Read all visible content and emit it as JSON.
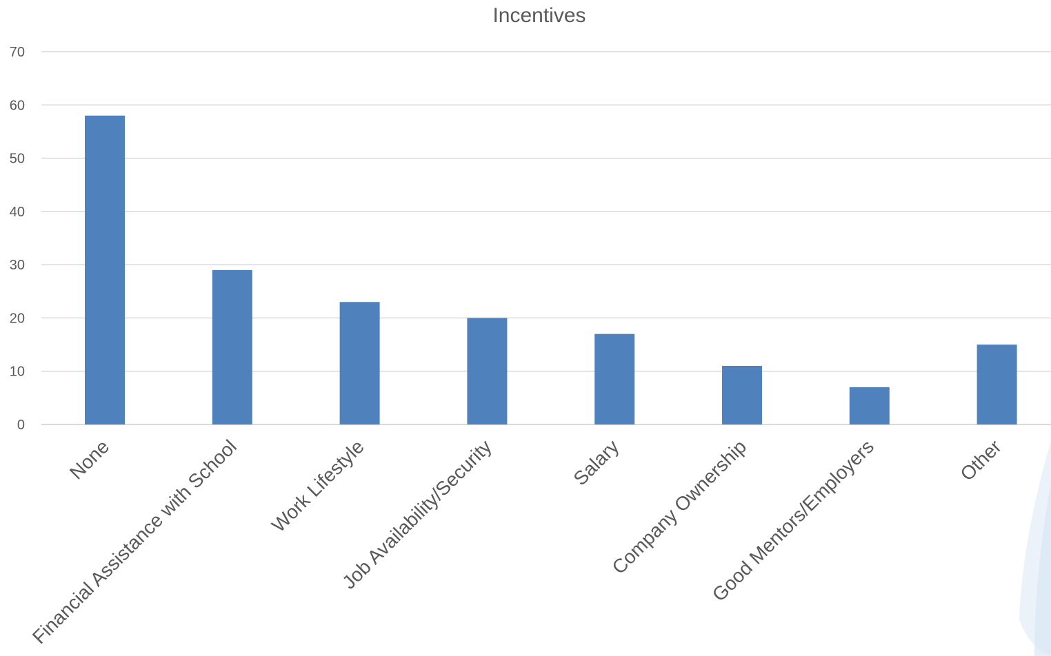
{
  "chart_data": {
    "type": "bar",
    "title": "Incentives",
    "xlabel": "",
    "ylabel": "",
    "categories": [
      "None",
      "Financial Assistance with School",
      "Work Lifestyle",
      "Job Availability/Security",
      "Salary",
      "Company Ownership",
      "Good Mentors/Employers",
      "Other"
    ],
    "values": [
      58,
      29,
      23,
      20,
      17,
      11,
      7,
      15
    ],
    "ylim": [
      0,
      70
    ],
    "yticks": [
      0,
      10,
      20,
      30,
      40,
      50,
      60,
      70
    ],
    "grid": true,
    "legend": "none",
    "bar_color": "#4f81bd",
    "background_decoration_color": "#dce9f5"
  }
}
